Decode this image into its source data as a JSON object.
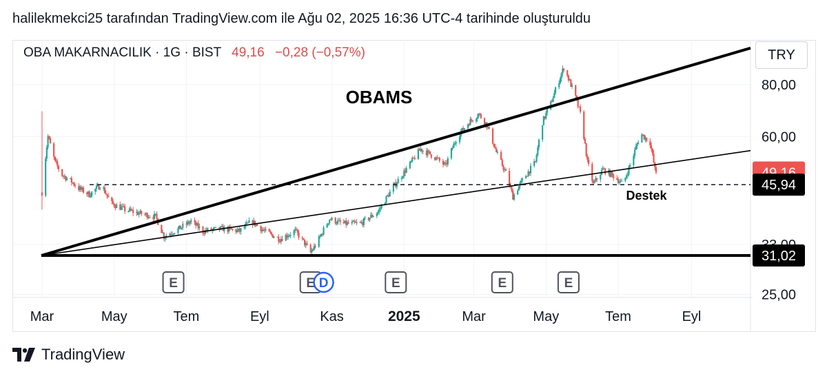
{
  "header": {
    "attribution": "halilekmekci25 tarafından TradingView.com ile Ağu 02, 2025 16:36 UTC-4 tarihinde oluşturuldu"
  },
  "symbol": {
    "name": "OBA MAKARNACILIK · 1G · BIST",
    "price": "49,16",
    "change": "−0,28 (−0,57%)"
  },
  "currency": "TRY",
  "footer": {
    "brand": "TradingView",
    "logo_icon": "tradingview-logo-icon"
  },
  "colors": {
    "up": "#26a69a",
    "down": "#ef5350",
    "price_tag": "#ef5350",
    "level_tag": "#000000",
    "text_red": "#e14a4a"
  },
  "chart_data": {
    "type": "candlestick",
    "title": "OBAMS",
    "y_scale": "log",
    "ylim": [
      23.5,
      100
    ],
    "y_ticks": [
      "25,00",
      "33,00",
      "60,00",
      "80,00"
    ],
    "x_ticks": [
      "Mar",
      "May",
      "Tem",
      "Eyl",
      "Kas",
      "2025",
      "Mar",
      "May",
      "Tem",
      "Eyl"
    ],
    "x_start": "2024-03-01",
    "x_end": "2025-10-15",
    "price_labels": [
      {
        "value": "49,16",
        "kind": "last_price"
      },
      {
        "value": "45,94",
        "kind": "support"
      },
      {
        "value": "31,02",
        "kind": "base"
      }
    ],
    "annotations": [
      {
        "text": "OBAMS"
      },
      {
        "text": "Destek"
      }
    ],
    "horizontal_lines": [
      {
        "price": 45.94,
        "style": "dashed"
      },
      {
        "price": 31.02,
        "style": "solid"
      }
    ],
    "trend_lines": [
      {
        "from": [
          "2024-03-01",
          31.02
        ],
        "to": [
          "2025-10-15",
          98.0
        ],
        "weight": "thick"
      },
      {
        "from": [
          "2024-03-01",
          31.02
        ],
        "to": [
          "2025-10-15",
          55.5
        ],
        "weight": "thin"
      }
    ],
    "event_markers": [
      {
        "label": "E",
        "date": "2024-06-20"
      },
      {
        "label": "E",
        "date": "2024-10-14"
      },
      {
        "label": "D",
        "date": "2024-10-25"
      },
      {
        "label": "E",
        "date": "2024-12-25"
      },
      {
        "label": "E",
        "date": "2025-03-25"
      },
      {
        "label": "E",
        "date": "2025-05-20"
      }
    ],
    "price_path": [
      [
        "2024-03-01",
        44.0
      ],
      [
        "2024-03-06",
        60.0
      ],
      [
        "2024-03-12",
        52.0
      ],
      [
        "2024-03-18",
        48.5
      ],
      [
        "2024-03-25",
        47.0
      ],
      [
        "2024-04-01",
        45.0
      ],
      [
        "2024-04-10",
        43.5
      ],
      [
        "2024-04-20",
        46.0
      ],
      [
        "2024-04-28",
        41.5
      ],
      [
        "2024-05-10",
        40.0
      ],
      [
        "2024-05-25",
        39.0
      ],
      [
        "2024-06-05",
        38.5
      ],
      [
        "2024-06-12",
        34.5
      ],
      [
        "2024-06-25",
        36.0
      ],
      [
        "2024-07-05",
        37.5
      ],
      [
        "2024-07-15",
        35.5
      ],
      [
        "2024-08-01",
        36.0
      ],
      [
        "2024-08-15",
        35.5
      ],
      [
        "2024-08-25",
        37.5
      ],
      [
        "2024-09-05",
        35.5
      ],
      [
        "2024-09-18",
        34.0
      ],
      [
        "2024-10-01",
        35.5
      ],
      [
        "2024-10-08",
        33.5
      ],
      [
        "2024-10-14",
        31.5
      ],
      [
        "2024-10-20",
        33.5
      ],
      [
        "2024-10-30",
        38.0
      ],
      [
        "2024-11-10",
        37.0
      ],
      [
        "2024-11-25",
        37.0
      ],
      [
        "2024-12-10",
        39.5
      ],
      [
        "2024-12-20",
        44.0
      ],
      [
        "2025-01-05",
        51.0
      ],
      [
        "2025-01-15",
        56.0
      ],
      [
        "2025-01-25",
        54.0
      ],
      [
        "2025-02-05",
        51.0
      ],
      [
        "2025-02-15",
        60.0
      ],
      [
        "2025-02-25",
        65.0
      ],
      [
        "2025-03-05",
        68.0
      ],
      [
        "2025-03-12",
        64.0
      ],
      [
        "2025-03-20",
        55.0
      ],
      [
        "2025-03-28",
        49.0
      ],
      [
        "2025-04-03",
        43.0
      ],
      [
        "2025-04-12",
        47.5
      ],
      [
        "2025-04-22",
        52.0
      ],
      [
        "2025-04-28",
        65.0
      ],
      [
        "2025-05-05",
        72.0
      ],
      [
        "2025-05-12",
        82.0
      ],
      [
        "2025-05-16",
        88.0
      ],
      [
        "2025-05-25",
        76.0
      ],
      [
        "2025-05-30",
        68.0
      ],
      [
        "2025-06-05",
        52.0
      ],
      [
        "2025-06-10",
        46.0
      ],
      [
        "2025-06-18",
        50.0
      ],
      [
        "2025-06-28",
        48.0
      ],
      [
        "2025-07-05",
        46.0
      ],
      [
        "2025-07-12",
        52.0
      ],
      [
        "2025-07-20",
        61.0
      ],
      [
        "2025-07-28",
        58.0
      ],
      [
        "2025-08-01",
        50.0
      ],
      [
        "2025-08-02",
        49.16
      ]
    ]
  }
}
